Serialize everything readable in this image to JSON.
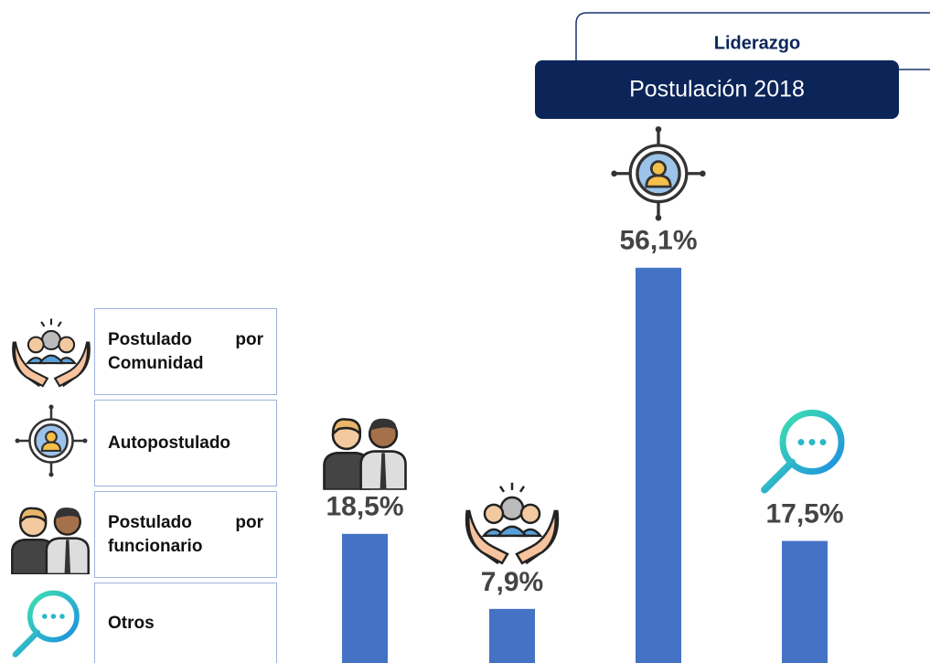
{
  "chart_data": {
    "type": "bar",
    "tab_title": "Liderazgo",
    "title": "Postulación 2018",
    "categories": [
      null,
      null,
      null,
      null
    ],
    "values": [
      18.5,
      7.9,
      56.1,
      17.5
    ],
    "value_labels": [
      "18,5%",
      "7,9%",
      "56,1%",
      "17,5%"
    ],
    "color": "#4472c4",
    "legend": [
      "Postulado por Comunidad",
      "Autopostulado",
      "Postulado por funcionario",
      "Otros"
    ]
  }
}
